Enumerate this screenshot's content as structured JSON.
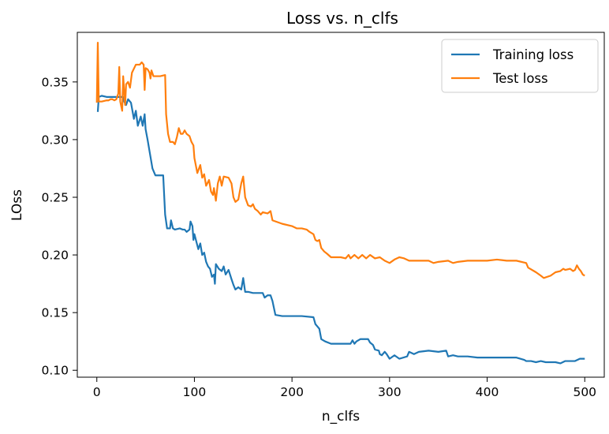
{
  "chart_data": {
    "type": "line",
    "title": "Loss vs. n_clfs",
    "xlabel": "n_clfs",
    "ylabel": "LOss",
    "xlim": [
      -20,
      520
    ],
    "ylim": [
      0.094,
      0.393
    ],
    "xticks": [
      0,
      100,
      200,
      300,
      400,
      500
    ],
    "xtick_labels": [
      "0",
      "100",
      "200",
      "300",
      "400",
      "500"
    ],
    "yticks": [
      0.1,
      0.15,
      0.2,
      0.25,
      0.3,
      0.35
    ],
    "ytick_labels": [
      "0.10",
      "0.15",
      "0.20",
      "0.25",
      "0.30",
      "0.35"
    ],
    "grid": false,
    "legend_position": "top-right",
    "series": [
      {
        "name": "Training loss",
        "color": "#1f77b4",
        "points": [
          [
            1,
            0.324
          ],
          [
            2,
            0.337
          ],
          [
            5,
            0.338
          ],
          [
            10,
            0.337
          ],
          [
            20,
            0.337
          ],
          [
            27,
            0.337
          ],
          [
            28,
            0.333
          ],
          [
            30,
            0.33
          ],
          [
            32,
            0.335
          ],
          [
            35,
            0.332
          ],
          [
            38,
            0.318
          ],
          [
            40,
            0.325
          ],
          [
            42,
            0.312
          ],
          [
            45,
            0.32
          ],
          [
            47,
            0.312
          ],
          [
            49,
            0.322
          ],
          [
            50,
            0.309
          ],
          [
            52,
            0.3
          ],
          [
            54,
            0.29
          ],
          [
            55,
            0.285
          ],
          [
            57,
            0.275
          ],
          [
            60,
            0.269
          ],
          [
            65,
            0.269
          ],
          [
            68,
            0.269
          ],
          [
            69,
            0.252
          ],
          [
            70,
            0.235
          ],
          [
            72,
            0.223
          ],
          [
            75,
            0.223
          ],
          [
            76,
            0.23
          ],
          [
            78,
            0.223
          ],
          [
            80,
            0.222
          ],
          [
            85,
            0.223
          ],
          [
            88,
            0.222
          ],
          [
            90,
            0.222
          ],
          [
            92,
            0.22
          ],
          [
            95,
            0.222
          ],
          [
            96,
            0.229
          ],
          [
            98,
            0.225
          ],
          [
            99,
            0.213
          ],
          [
            100,
            0.218
          ],
          [
            104,
            0.205
          ],
          [
            106,
            0.21
          ],
          [
            108,
            0.2
          ],
          [
            110,
            0.202
          ],
          [
            112,
            0.194
          ],
          [
            114,
            0.19
          ],
          [
            116,
            0.188
          ],
          [
            118,
            0.181
          ],
          [
            120,
            0.183
          ],
          [
            121,
            0.175
          ],
          [
            122,
            0.192
          ],
          [
            125,
            0.188
          ],
          [
            128,
            0.186
          ],
          [
            130,
            0.19
          ],
          [
            132,
            0.183
          ],
          [
            135,
            0.187
          ],
          [
            138,
            0.179
          ],
          [
            140,
            0.174
          ],
          [
            142,
            0.17
          ],
          [
            145,
            0.172
          ],
          [
            148,
            0.17
          ],
          [
            150,
            0.18
          ],
          [
            152,
            0.168
          ],
          [
            155,
            0.168
          ],
          [
            160,
            0.167
          ],
          [
            170,
            0.167
          ],
          [
            172,
            0.163
          ],
          [
            175,
            0.165
          ],
          [
            178,
            0.165
          ],
          [
            180,
            0.16
          ],
          [
            182,
            0.152
          ],
          [
            183,
            0.148
          ],
          [
            190,
            0.147
          ],
          [
            210,
            0.147
          ],
          [
            222,
            0.146
          ],
          [
            224,
            0.14
          ],
          [
            226,
            0.138
          ],
          [
            228,
            0.136
          ],
          [
            230,
            0.127
          ],
          [
            234,
            0.125
          ],
          [
            240,
            0.123
          ],
          [
            260,
            0.123
          ],
          [
            262,
            0.126
          ],
          [
            264,
            0.123
          ],
          [
            266,
            0.125
          ],
          [
            270,
            0.127
          ],
          [
            278,
            0.127
          ],
          [
            280,
            0.124
          ],
          [
            283,
            0.122
          ],
          [
            285,
            0.118
          ],
          [
            289,
            0.117
          ],
          [
            290,
            0.114
          ],
          [
            292,
            0.113
          ],
          [
            295,
            0.116
          ],
          [
            297,
            0.114
          ],
          [
            300,
            0.11
          ],
          [
            305,
            0.113
          ],
          [
            310,
            0.11
          ],
          [
            318,
            0.112
          ],
          [
            320,
            0.116
          ],
          [
            325,
            0.114
          ],
          [
            330,
            0.116
          ],
          [
            340,
            0.117
          ],
          [
            350,
            0.116
          ],
          [
            358,
            0.117
          ],
          [
            360,
            0.112
          ],
          [
            365,
            0.113
          ],
          [
            370,
            0.112
          ],
          [
            380,
            0.112
          ],
          [
            390,
            0.111
          ],
          [
            400,
            0.111
          ],
          [
            410,
            0.111
          ],
          [
            420,
            0.111
          ],
          [
            430,
            0.111
          ],
          [
            438,
            0.109
          ],
          [
            440,
            0.108
          ],
          [
            445,
            0.108
          ],
          [
            450,
            0.107
          ],
          [
            455,
            0.108
          ],
          [
            460,
            0.107
          ],
          [
            465,
            0.107
          ],
          [
            470,
            0.107
          ],
          [
            475,
            0.106
          ],
          [
            480,
            0.108
          ],
          [
            485,
            0.108
          ],
          [
            490,
            0.108
          ],
          [
            495,
            0.11
          ],
          [
            500,
            0.11
          ]
        ]
      },
      {
        "name": "Test loss",
        "color": "#ff7f0e",
        "points": [
          [
            0,
            0.332
          ],
          [
            1,
            0.384
          ],
          [
            2,
            0.333
          ],
          [
            5,
            0.333
          ],
          [
            10,
            0.334
          ],
          [
            12,
            0.334
          ],
          [
            14,
            0.335
          ],
          [
            16,
            0.335
          ],
          [
            18,
            0.334
          ],
          [
            20,
            0.335
          ],
          [
            22,
            0.34
          ],
          [
            23,
            0.363
          ],
          [
            24,
            0.333
          ],
          [
            26,
            0.325
          ],
          [
            27,
            0.355
          ],
          [
            29,
            0.33
          ],
          [
            30,
            0.348
          ],
          [
            32,
            0.35
          ],
          [
            34,
            0.345
          ],
          [
            36,
            0.358
          ],
          [
            40,
            0.365
          ],
          [
            42,
            0.365
          ],
          [
            44,
            0.365
          ],
          [
            46,
            0.367
          ],
          [
            48,
            0.365
          ],
          [
            49,
            0.343
          ],
          [
            50,
            0.362
          ],
          [
            52,
            0.361
          ],
          [
            54,
            0.358
          ],
          [
            55,
            0.353
          ],
          [
            56,
            0.36
          ],
          [
            58,
            0.355
          ],
          [
            62,
            0.355
          ],
          [
            65,
            0.355
          ],
          [
            70,
            0.356
          ],
          [
            71,
            0.322
          ],
          [
            73,
            0.305
          ],
          [
            75,
            0.298
          ],
          [
            78,
            0.298
          ],
          [
            80,
            0.296
          ],
          [
            82,
            0.302
          ],
          [
            84,
            0.31
          ],
          [
            86,
            0.305
          ],
          [
            88,
            0.305
          ],
          [
            90,
            0.308
          ],
          [
            92,
            0.305
          ],
          [
            95,
            0.303
          ],
          [
            97,
            0.298
          ],
          [
            99,
            0.295
          ],
          [
            100,
            0.284
          ],
          [
            103,
            0.271
          ],
          [
            106,
            0.278
          ],
          [
            108,
            0.267
          ],
          [
            110,
            0.27
          ],
          [
            112,
            0.26
          ],
          [
            115,
            0.265
          ],
          [
            117,
            0.255
          ],
          [
            119,
            0.252
          ],
          [
            120,
            0.258
          ],
          [
            122,
            0.247
          ],
          [
            124,
            0.262
          ],
          [
            126,
            0.268
          ],
          [
            128,
            0.26
          ],
          [
            130,
            0.268
          ],
          [
            135,
            0.267
          ],
          [
            138,
            0.262
          ],
          [
            140,
            0.25
          ],
          [
            142,
            0.246
          ],
          [
            145,
            0.248
          ],
          [
            148,
            0.262
          ],
          [
            150,
            0.268
          ],
          [
            152,
            0.25
          ],
          [
            155,
            0.243
          ],
          [
            158,
            0.242
          ],
          [
            160,
            0.244
          ],
          [
            162,
            0.24
          ],
          [
            165,
            0.238
          ],
          [
            168,
            0.235
          ],
          [
            170,
            0.237
          ],
          [
            175,
            0.236
          ],
          [
            178,
            0.238
          ],
          [
            180,
            0.23
          ],
          [
            190,
            0.227
          ],
          [
            200,
            0.225
          ],
          [
            205,
            0.223
          ],
          [
            210,
            0.223
          ],
          [
            215,
            0.222
          ],
          [
            218,
            0.22
          ],
          [
            222,
            0.218
          ],
          [
            224,
            0.213
          ],
          [
            226,
            0.212
          ],
          [
            228,
            0.213
          ],
          [
            230,
            0.206
          ],
          [
            233,
            0.203
          ],
          [
            236,
            0.201
          ],
          [
            240,
            0.198
          ],
          [
            250,
            0.198
          ],
          [
            255,
            0.197
          ],
          [
            258,
            0.2
          ],
          [
            260,
            0.197
          ],
          [
            264,
            0.2
          ],
          [
            268,
            0.197
          ],
          [
            272,
            0.2
          ],
          [
            276,
            0.197
          ],
          [
            280,
            0.2
          ],
          [
            285,
            0.197
          ],
          [
            290,
            0.198
          ],
          [
            295,
            0.195
          ],
          [
            300,
            0.193
          ],
          [
            305,
            0.196
          ],
          [
            310,
            0.198
          ],
          [
            315,
            0.197
          ],
          [
            320,
            0.195
          ],
          [
            330,
            0.195
          ],
          [
            340,
            0.195
          ],
          [
            345,
            0.193
          ],
          [
            350,
            0.194
          ],
          [
            360,
            0.195
          ],
          [
            365,
            0.193
          ],
          [
            370,
            0.194
          ],
          [
            380,
            0.195
          ],
          [
            390,
            0.195
          ],
          [
            400,
            0.195
          ],
          [
            410,
            0.196
          ],
          [
            420,
            0.195
          ],
          [
            430,
            0.195
          ],
          [
            440,
            0.193
          ],
          [
            442,
            0.189
          ],
          [
            450,
            0.185
          ],
          [
            455,
            0.182
          ],
          [
            458,
            0.18
          ],
          [
            465,
            0.182
          ],
          [
            470,
            0.185
          ],
          [
            475,
            0.186
          ],
          [
            478,
            0.188
          ],
          [
            480,
            0.187
          ],
          [
            485,
            0.188
          ],
          [
            488,
            0.186
          ],
          [
            490,
            0.187
          ],
          [
            492,
            0.191
          ],
          [
            494,
            0.188
          ],
          [
            496,
            0.186
          ],
          [
            498,
            0.183
          ],
          [
            500,
            0.182
          ]
        ]
      }
    ]
  }
}
